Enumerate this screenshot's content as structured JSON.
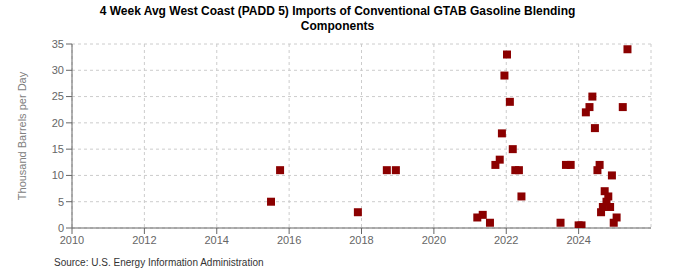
{
  "chart_data": {
    "type": "scatter",
    "title": "4 Week Avg West Coast (PADD 5) Imports of Conventional GTAB Gasoline Blending\nComponents",
    "ylabel": "Thousand Barrels per Day",
    "annotations": [
      "Source: U.S. Energy Information Administration"
    ],
    "x": [
      2015.5,
      2015.75,
      2017.9,
      2018.7,
      2018.95,
      2021.2,
      2021.35,
      2021.55,
      2021.7,
      2021.82,
      2021.88,
      2021.95,
      2022.02,
      2022.1,
      2022.18,
      2022.25,
      2022.35,
      2022.42,
      2023.5,
      2023.65,
      2023.78,
      2024.0,
      2024.08,
      2024.2,
      2024.3,
      2024.38,
      2024.45,
      2024.52,
      2024.58,
      2024.62,
      2024.67,
      2024.72,
      2024.77,
      2024.82,
      2024.87,
      2024.92,
      2024.97,
      2025.05,
      2025.22,
      2025.35
    ],
    "values": [
      5,
      11,
      3,
      11,
      11,
      2,
      2.5,
      1,
      12,
      13,
      18,
      29,
      33,
      24,
      15,
      11,
      11,
      6,
      1,
      12,
      12,
      0.5,
      0.5,
      22,
      23,
      25,
      19,
      11,
      12,
      3,
      4,
      7,
      5,
      6,
      4,
      10,
      1,
      2,
      23,
      34
    ],
    "color": "#8b0000",
    "marker": "square",
    "xlim": [
      2010,
      2026
    ],
    "xticks": [
      2010,
      2012,
      2014,
      2016,
      2018,
      2020,
      2022,
      2024
    ],
    "ylim": [
      0,
      35
    ],
    "yticks": [
      0,
      5,
      10,
      15,
      20,
      25,
      30,
      35
    ],
    "grid": true
  }
}
